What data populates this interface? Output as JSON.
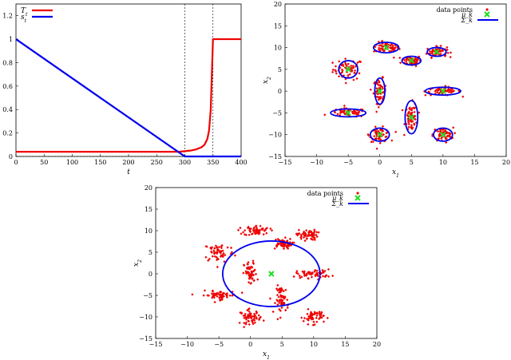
{
  "colors": {
    "red": "#ee0000",
    "blue": "#0000ee",
    "green": "#22dd22",
    "frame": "#000000"
  },
  "chart_data": [
    {
      "type": "line",
      "xlabel": "t",
      "ylabel": "",
      "xlim": [
        0,
        400
      ],
      "ylim": [
        0,
        1.3
      ],
      "xticks": [
        "0",
        "50",
        "100",
        "150",
        "200",
        "250",
        "300",
        "350",
        "400"
      ],
      "yticks": [
        "0",
        "0.2",
        "0.4",
        "0.6",
        "0.8",
        "1",
        "1.2"
      ],
      "legend_position": "top-left",
      "vlines": [
        300,
        350
      ],
      "hline": 0,
      "series": [
        {
          "name": "T_t",
          "color": "#ee0000",
          "x": [
            0,
            290,
            300,
            310,
            320,
            330,
            335,
            340,
            343,
            346,
            348,
            350,
            400
          ],
          "y": [
            0.04,
            0.04,
            0.045,
            0.05,
            0.06,
            0.08,
            0.1,
            0.15,
            0.22,
            0.4,
            0.7,
            1.0,
            1.0
          ]
        },
        {
          "name": "s_t",
          "color": "#0000ee",
          "x": [
            0,
            300,
            400
          ],
          "y": [
            1.0,
            0.0,
            0.0
          ]
        }
      ]
    },
    {
      "type": "scatter",
      "xlabel": "x_1",
      "ylabel": "x_2",
      "xlim": [
        -15,
        20
      ],
      "ylim": [
        -15,
        20
      ],
      "xticks": [
        "−15",
        "−10",
        "−5",
        "0",
        "5",
        "10",
        "15",
        "20"
      ],
      "yticks": [
        "−15",
        "−10",
        "−5",
        "0",
        "5",
        "10",
        "15",
        "20"
      ],
      "legend_position": "top-right",
      "legend": [
        "data points",
        "μ_k",
        "Σ_k"
      ],
      "cluster_centers": [
        [
          -5,
          5
        ],
        [
          1,
          10
        ],
        [
          5,
          7
        ],
        [
          9,
          9
        ],
        [
          0,
          0
        ],
        [
          10,
          0
        ],
        [
          -5,
          -5
        ],
        [
          5,
          -6
        ],
        [
          0,
          -10
        ],
        [
          10,
          -10
        ]
      ],
      "cluster_spread": [
        [
          1.2,
          1.2
        ],
        [
          1.0,
          0.6
        ],
        [
          0.8,
          0.6
        ],
        [
          0.8,
          0.6
        ],
        [
          0.5,
          1.4
        ],
        [
          1.4,
          0.5
        ],
        [
          1.4,
          0.5
        ],
        [
          0.5,
          1.6
        ],
        [
          0.8,
          0.8
        ],
        [
          0.8,
          0.8
        ]
      ],
      "ellipses": [
        {
          "cx": -5,
          "cy": 5,
          "rx": 1.5,
          "ry": 2.0
        },
        {
          "cx": 1,
          "cy": 10,
          "rx": 2.0,
          "ry": 1.2
        },
        {
          "cx": 5,
          "cy": 7,
          "rx": 1.5,
          "ry": 1.0
        },
        {
          "cx": 9,
          "cy": 9,
          "rx": 1.5,
          "ry": 1.0
        },
        {
          "cx": 0,
          "cy": 0,
          "rx": 0.8,
          "ry": 3.0
        },
        {
          "cx": 10,
          "cy": 0,
          "rx": 2.8,
          "ry": 0.9
        },
        {
          "cx": -5,
          "cy": -5,
          "rx": 2.8,
          "ry": 0.9
        },
        {
          "cx": 5,
          "cy": -6,
          "rx": 1.0,
          "ry": 3.8
        },
        {
          "cx": 0,
          "cy": -10,
          "rx": 1.5,
          "ry": 1.5
        },
        {
          "cx": 10,
          "cy": -10,
          "rx": 1.5,
          "ry": 1.5
        }
      ],
      "points_per_cluster": 60
    },
    {
      "type": "scatter",
      "xlabel": "x_1",
      "ylabel": "x_2",
      "xlim": [
        -15,
        20
      ],
      "ylim": [
        -15,
        20
      ],
      "xticks": [
        "−15",
        "−10",
        "−5",
        "0",
        "5",
        "10",
        "15",
        "20"
      ],
      "yticks": [
        "−15",
        "−10",
        "−5",
        "0",
        "5",
        "10",
        "15",
        "20"
      ],
      "legend_position": "top-right",
      "legend": [
        "data points",
        "μ_k",
        "Σ_k"
      ],
      "cluster_centers": [
        [
          -5,
          5
        ],
        [
          1,
          10
        ],
        [
          5,
          7
        ],
        [
          9,
          9
        ],
        [
          0,
          0
        ],
        [
          10,
          0
        ],
        [
          -5,
          -5
        ],
        [
          5,
          -6
        ],
        [
          0,
          -10
        ],
        [
          10,
          -10
        ]
      ],
      "cluster_spread": [
        [
          1.2,
          1.2
        ],
        [
          1.0,
          0.6
        ],
        [
          0.8,
          0.6
        ],
        [
          0.8,
          0.6
        ],
        [
          0.5,
          1.4
        ],
        [
          1.4,
          0.5
        ],
        [
          1.4,
          0.5
        ],
        [
          0.5,
          1.6
        ],
        [
          0.8,
          0.8
        ],
        [
          0.8,
          0.8
        ]
      ],
      "ellipses": [
        {
          "cx": 3.3,
          "cy": 0,
          "rx": 7.7,
          "ry": 7.6
        }
      ],
      "centers_marked": [
        [
          3.3,
          0
        ]
      ],
      "points_per_cluster": 60
    }
  ]
}
